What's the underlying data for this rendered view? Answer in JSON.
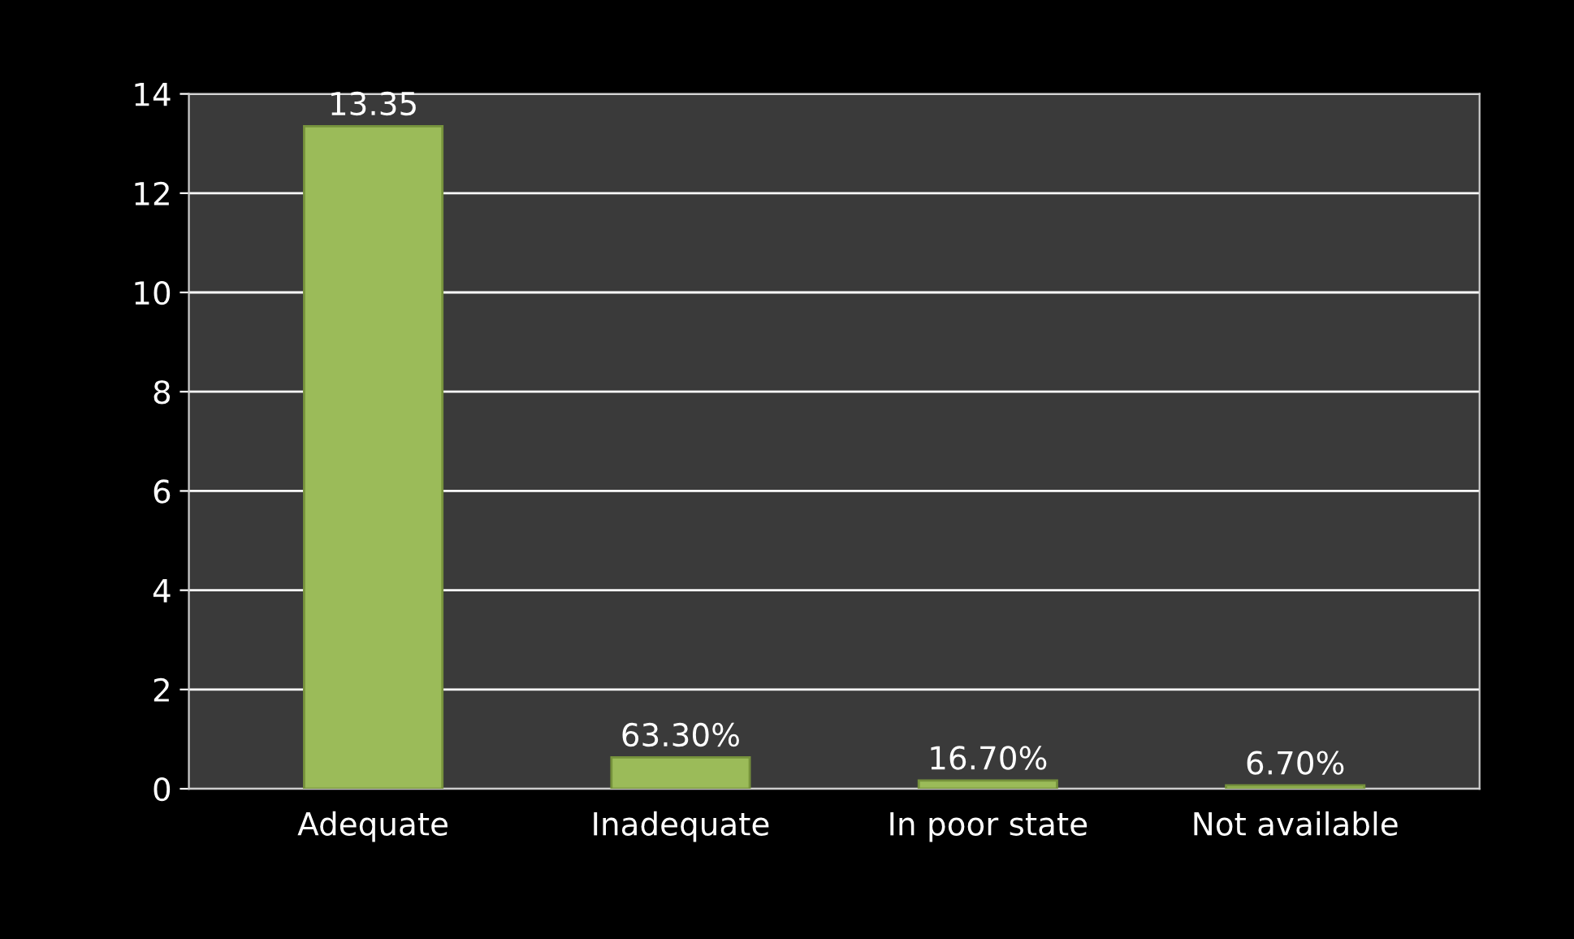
{
  "chart_data": {
    "type": "bar",
    "categories": [
      "Adequate",
      "Inadequate",
      "In poor state",
      "Not available"
    ],
    "values": [
      13.35,
      0.633,
      0.167,
      0.067
    ],
    "value_labels": [
      "13.35",
      "63.30%",
      "16.70%",
      "6.70%"
    ],
    "color": "#9bbb59",
    "ylim": [
      0,
      14
    ],
    "yticks": [
      0,
      2,
      4,
      6,
      8,
      10,
      12,
      14
    ],
    "grid": "y"
  }
}
